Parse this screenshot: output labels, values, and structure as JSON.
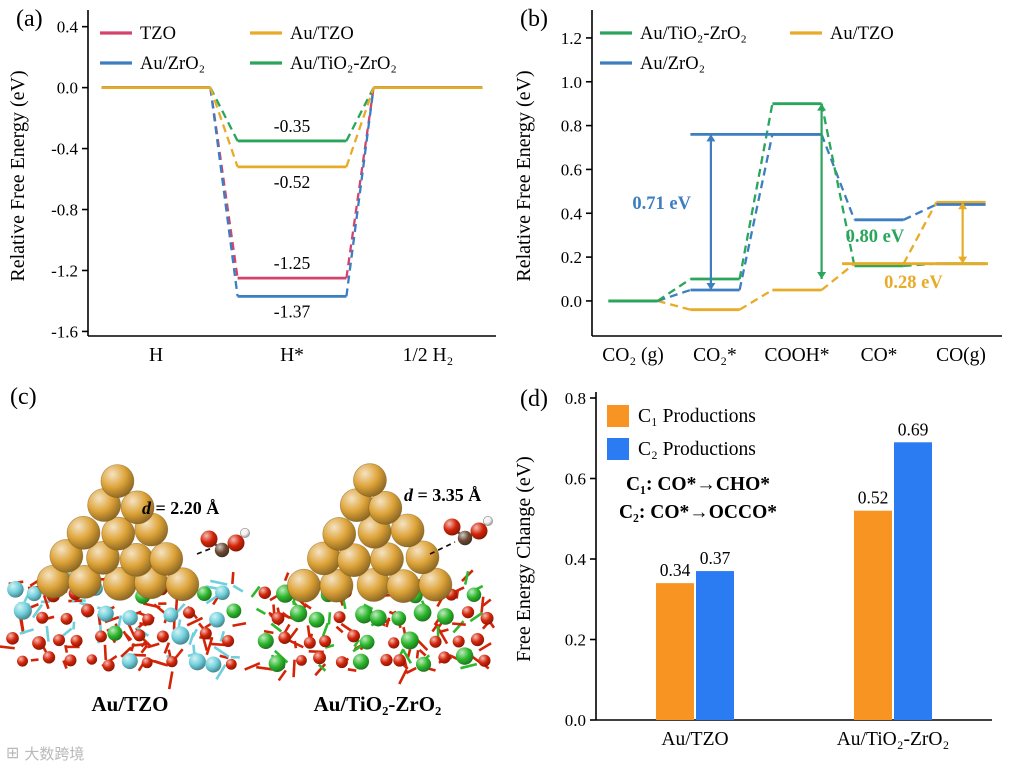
{
  "panel_tags": {
    "a": "(a)",
    "b": "(b)",
    "c": "(c)",
    "d": "(d)"
  },
  "watermark": {
    "text": "大数跨境"
  },
  "chart_data": [
    {
      "id": "a",
      "type": "line",
      "variant": "reaction-energy-diagram",
      "ylabel": "Relative Free Energy (eV)",
      "categories": [
        "H",
        "H*",
        "1/2 H₂"
      ],
      "ylim": [
        -1.63,
        0.47
      ],
      "yticks": [
        "0.4",
        "0.0",
        "-0.4",
        "-0.8",
        "-1.2",
        "-1.6"
      ],
      "series": [
        {
          "name": "TZO",
          "color": "#d5436d",
          "values": [
            0.0,
            -1.25,
            0.0
          ]
        },
        {
          "name": "Au/ZrO₂",
          "color": "#3d7ec0",
          "values": [
            0.0,
            -1.37,
            0.0
          ]
        },
        {
          "name": "Au/TiO₂-ZrO₂",
          "color": "#2aa55c",
          "values": [
            0.0,
            -0.35,
            0.0
          ]
        },
        {
          "name": "Au/TZO",
          "color": "#e8ab27",
          "values": [
            0.0,
            -0.52,
            0.0
          ]
        }
      ],
      "legend": {
        "order": [
          "TZO",
          "Au/TZO",
          "Au/ZrO₂",
          "Au/TiO₂-ZrO₂"
        ],
        "columns": 2
      },
      "annotations": [
        {
          "text": "-0.35",
          "x": 1,
          "y": -0.35,
          "dy": -9
        },
        {
          "text": "-0.52",
          "x": 1,
          "y": -0.52,
          "dy": 21
        },
        {
          "text": "-1.25",
          "x": 1,
          "y": -1.25,
          "dy": -9
        },
        {
          "text": "-1.37",
          "x": 1,
          "y": -1.37,
          "dy": 21
        }
      ]
    },
    {
      "id": "b",
      "type": "line",
      "variant": "reaction-energy-diagram",
      "ylabel": "Relative Free Energy (eV)",
      "categories": [
        "CO₂ (g)",
        "CO₂*",
        "COOH*",
        "CO*",
        "CO(g)"
      ],
      "ylim": [
        -0.16,
        1.3
      ],
      "yticks": [
        "0.0",
        "0.2",
        "0.4",
        "0.6",
        "0.8",
        "1.0",
        "1.2"
      ],
      "series": [
        {
          "name": "Au/TZO",
          "color": "#e8ab27",
          "values": [
            0.0,
            -0.04,
            0.05,
            0.17,
            0.45
          ]
        },
        {
          "name": "Au/ZrO₂",
          "color": "#3d7ec0",
          "values": [
            0.0,
            0.05,
            0.76,
            0.37,
            0.44
          ]
        },
        {
          "name": "Au/TiO₂-ZrO₂",
          "color": "#2aa55c",
          "values": [
            0.0,
            0.1,
            0.9,
            0.16,
            0.17
          ]
        }
      ],
      "segments": [
        {
          "color": "#3d7ec0",
          "y": 0.76,
          "x1": 0.7,
          "x2": 2.3
        },
        {
          "color": "#e8ab27",
          "y": 0.17,
          "x1": 2.55,
          "x2": 4.33
        }
      ],
      "arrows": [
        {
          "color": "#3d7ec0",
          "x": 0.95,
          "y1": 0.05,
          "y2": 0.76,
          "label": "0.71 eV",
          "lx": 0.35,
          "ly": 0.42
        },
        {
          "color": "#2aa55c",
          "x": 2.3,
          "y1": 0.1,
          "y2": 0.9,
          "label": "0.80 eV",
          "lx": 2.95,
          "ly": 0.27
        },
        {
          "color": "#e8ab27",
          "x": 4.02,
          "y1": 0.17,
          "y2": 0.45,
          "label": "0.28 eV",
          "lx": 3.42,
          "ly": 0.06
        }
      ],
      "legend": {
        "order": [
          "Au/TiO₂-ZrO₂",
          "Au/TZO",
          "Au/ZrO₂"
        ],
        "columns": 2
      }
    },
    {
      "id": "d",
      "type": "bar",
      "ylabel": "Free Energy Change (eV)",
      "categories": [
        "Au/TZO",
        "Au/TiO₂-ZrO₂"
      ],
      "ylim": [
        0,
        0.8
      ],
      "yticks": [
        "0.0",
        "0.2",
        "0.4",
        "0.6",
        "0.8"
      ],
      "series": [
        {
          "name": "C₁ Productions",
          "color": "#f89522",
          "values": [
            0.34,
            0.52
          ]
        },
        {
          "name": "C₂ Productions",
          "color": "#2b7bf2",
          "values": [
            0.37,
            0.69
          ]
        }
      ],
      "bar_labels": [
        [
          "0.34",
          "0.52"
        ],
        [
          "0.37",
          "0.69"
        ]
      ],
      "notes": [
        "C₁: CO*→CHO*",
        "C₂: CO*→OCCO*"
      ]
    }
  ],
  "structures": {
    "left": {
      "label": "Au/TZO",
      "distance_symbol": "d",
      "distance_value": " = 2.20 Å",
      "palette": {
        "metal": "#dda338",
        "oxygen": "#d42408",
        "cation": "#6fd0dc",
        "dopant": "#2db82d"
      }
    },
    "right": {
      "label": "Au/TiO₂-ZrO₂",
      "distance_symbol": "d",
      "distance_value": " = 3.35 Å",
      "palette": {
        "metal": "#dda338",
        "oxygen": "#d42408",
        "cation": "#2db82d",
        "dopant": "#2db82d"
      }
    },
    "molecule": {
      "carbon": "#6b4a33",
      "oxygen": "#d42408",
      "hydrogen": "#f2f0ee"
    }
  }
}
